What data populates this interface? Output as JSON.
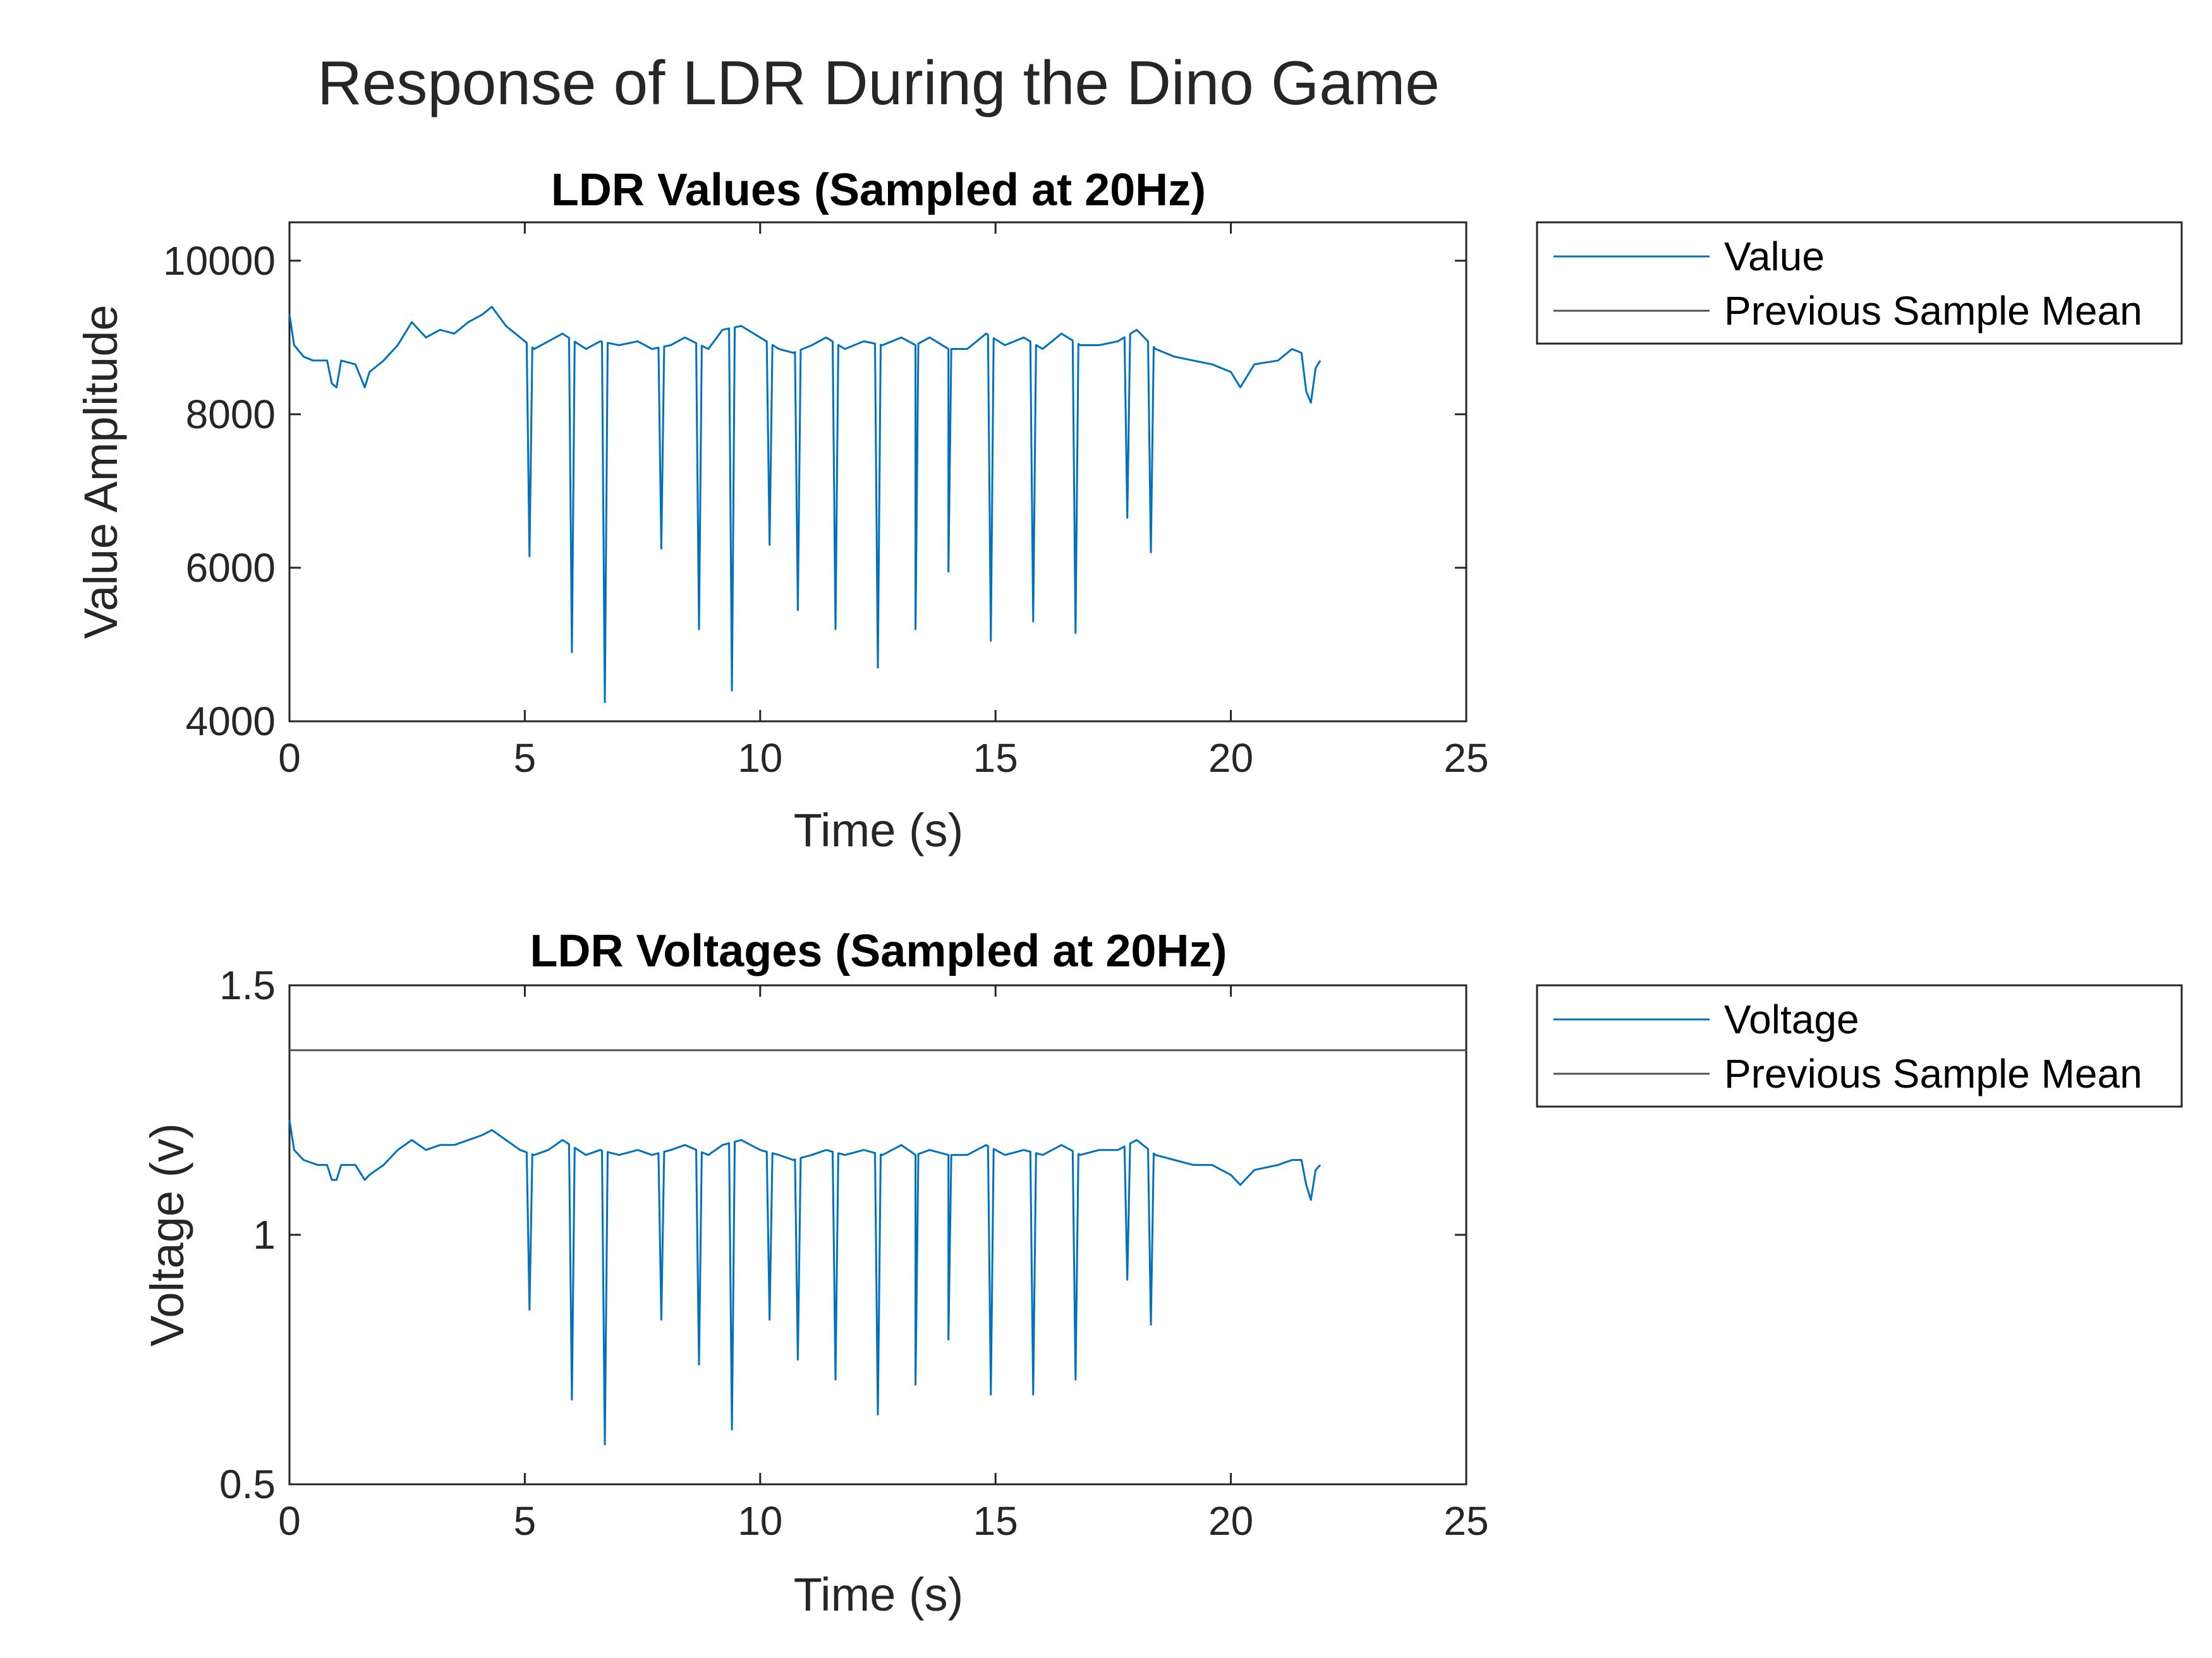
{
  "figure": {
    "title": "Response of LDR During the Dino Game"
  },
  "chart_data": [
    {
      "type": "line",
      "title": "LDR Values (Sampled at 20Hz)",
      "xlabel": "Time (s)",
      "ylabel": "Value Amplitude",
      "xlim": [
        0,
        25
      ],
      "ylim": [
        4000,
        10500
      ],
      "xticks": [
        "0",
        "5",
        "10",
        "15",
        "20",
        "25"
      ],
      "xtick_values": [
        0,
        5,
        10,
        15,
        20,
        25
      ],
      "yticks": [
        "4000",
        "6000",
        "8000",
        "10000"
      ],
      "ytick_values": [
        4000,
        6000,
        8000,
        10000
      ],
      "grid": false,
      "legend": {
        "placement": "outside-right",
        "entries": [
          "Value",
          "Previous Sample Mean"
        ]
      },
      "series": [
        {
          "name": "Value",
          "color": "#0072BD",
          "baseline": [
            [
              0.0,
              9300
            ],
            [
              0.1,
              8900
            ],
            [
              0.3,
              8750
            ],
            [
              0.5,
              8700
            ],
            [
              0.8,
              8700
            ],
            [
              0.9,
              8400
            ],
            [
              1.0,
              8350
            ],
            [
              1.1,
              8700
            ],
            [
              1.4,
              8650
            ],
            [
              1.6,
              8350
            ],
            [
              1.7,
              8550
            ],
            [
              2.0,
              8700
            ],
            [
              2.3,
              8900
            ],
            [
              2.6,
              9200
            ],
            [
              2.9,
              9000
            ],
            [
              3.2,
              9100
            ],
            [
              3.5,
              9050
            ],
            [
              3.8,
              9200
            ],
            [
              4.1,
              9300
            ],
            [
              4.3,
              9400
            ],
            [
              4.6,
              9150
            ],
            [
              4.9,
              9000
            ],
            [
              5.2,
              8850
            ],
            [
              5.5,
              8950
            ],
            [
              5.8,
              9050
            ],
            [
              6.3,
              8850
            ],
            [
              6.6,
              8950
            ],
            [
              7.0,
              8900
            ],
            [
              7.4,
              8950
            ],
            [
              7.7,
              8850
            ],
            [
              8.1,
              8900
            ],
            [
              8.4,
              9000
            ],
            [
              8.9,
              8850
            ],
            [
              9.2,
              9100
            ],
            [
              9.6,
              9150
            ],
            [
              10.0,
              9000
            ],
            [
              10.4,
              8850
            ],
            [
              10.7,
              8800
            ],
            [
              11.1,
              8900
            ],
            [
              11.4,
              9000
            ],
            [
              11.8,
              8850
            ],
            [
              12.2,
              8950
            ],
            [
              12.6,
              8900
            ],
            [
              13.0,
              9000
            ],
            [
              13.3,
              8900
            ],
            [
              13.6,
              9000
            ],
            [
              14.0,
              8850
            ],
            [
              14.4,
              8850
            ],
            [
              14.8,
              9050
            ],
            [
              15.2,
              8900
            ],
            [
              15.6,
              9000
            ],
            [
              16.0,
              8850
            ],
            [
              16.4,
              9050
            ],
            [
              16.8,
              8900
            ],
            [
              17.2,
              8900
            ],
            [
              17.6,
              8950
            ],
            [
              18.0,
              9100
            ],
            [
              18.4,
              8850
            ],
            [
              18.8,
              8750
            ],
            [
              19.2,
              8700
            ],
            [
              19.6,
              8650
            ],
            [
              20.0,
              8550
            ],
            [
              20.2,
              8350
            ],
            [
              20.5,
              8650
            ],
            [
              21.0,
              8700
            ],
            [
              21.3,
              8850
            ],
            [
              21.5,
              8800
            ],
            [
              21.6,
              8300
            ],
            [
              21.7,
              8150
            ],
            [
              21.8,
              8600
            ],
            [
              21.9,
              8700
            ]
          ],
          "dips": [
            [
              5.1,
              6150
            ],
            [
              6.0,
              4900
            ],
            [
              6.7,
              4250
            ],
            [
              7.9,
              6250
            ],
            [
              8.7,
              5200
            ],
            [
              9.4,
              4400
            ],
            [
              10.2,
              6300
            ],
            [
              10.8,
              5450
            ],
            [
              11.6,
              5200
            ],
            [
              12.5,
              4700
            ],
            [
              13.3,
              5200
            ],
            [
              14.0,
              5950
            ],
            [
              14.9,
              5050
            ],
            [
              15.8,
              5300
            ],
            [
              16.7,
              5150
            ],
            [
              17.8,
              6650
            ],
            [
              18.3,
              6200
            ]
          ]
        }
      ]
    },
    {
      "type": "line",
      "title": "LDR Voltages (Sampled at 20Hz)",
      "xlabel": "Time (s)",
      "ylabel": "Voltage (v)",
      "xlim": [
        0,
        25
      ],
      "ylim": [
        0.5,
        1.5
      ],
      "xticks": [
        "0",
        "5",
        "10",
        "15",
        "20",
        "25"
      ],
      "xtick_values": [
        0,
        5,
        10,
        15,
        20,
        25
      ],
      "yticks": [
        "0.5",
        "1",
        "1.5"
      ],
      "ytick_values": [
        0.5,
        1,
        1.5
      ],
      "grid": false,
      "legend": {
        "placement": "outside-right",
        "entries": [
          "Voltage",
          "Previous Sample Mean"
        ]
      },
      "series": [
        {
          "name": "Voltage",
          "color": "#0072BD",
          "baseline": [
            [
              0.0,
              1.23
            ],
            [
              0.1,
              1.17
            ],
            [
              0.3,
              1.15
            ],
            [
              0.6,
              1.14
            ],
            [
              0.8,
              1.14
            ],
            [
              0.9,
              1.11
            ],
            [
              1.0,
              1.11
            ],
            [
              1.1,
              1.14
            ],
            [
              1.4,
              1.14
            ],
            [
              1.6,
              1.11
            ],
            [
              1.7,
              1.12
            ],
            [
              2.0,
              1.14
            ],
            [
              2.3,
              1.17
            ],
            [
              2.6,
              1.19
            ],
            [
              2.9,
              1.17
            ],
            [
              3.2,
              1.18
            ],
            [
              3.5,
              1.18
            ],
            [
              3.8,
              1.19
            ],
            [
              4.1,
              1.2
            ],
            [
              4.3,
              1.21
            ],
            [
              4.6,
              1.19
            ],
            [
              4.9,
              1.17
            ],
            [
              5.2,
              1.16
            ],
            [
              5.5,
              1.17
            ],
            [
              5.8,
              1.19
            ],
            [
              6.3,
              1.16
            ],
            [
              6.6,
              1.17
            ],
            [
              7.0,
              1.16
            ],
            [
              7.4,
              1.17
            ],
            [
              7.7,
              1.16
            ],
            [
              8.1,
              1.17
            ],
            [
              8.4,
              1.18
            ],
            [
              8.9,
              1.16
            ],
            [
              9.2,
              1.18
            ],
            [
              9.6,
              1.19
            ],
            [
              10.0,
              1.17
            ],
            [
              10.4,
              1.16
            ],
            [
              10.7,
              1.15
            ],
            [
              11.1,
              1.16
            ],
            [
              11.4,
              1.17
            ],
            [
              11.8,
              1.16
            ],
            [
              12.2,
              1.17
            ],
            [
              12.6,
              1.16
            ],
            [
              13.0,
              1.18
            ],
            [
              13.3,
              1.16
            ],
            [
              13.6,
              1.17
            ],
            [
              14.0,
              1.16
            ],
            [
              14.4,
              1.16
            ],
            [
              14.8,
              1.18
            ],
            [
              15.2,
              1.16
            ],
            [
              15.6,
              1.17
            ],
            [
              16.0,
              1.16
            ],
            [
              16.4,
              1.18
            ],
            [
              16.8,
              1.16
            ],
            [
              17.2,
              1.17
            ],
            [
              17.6,
              1.17
            ],
            [
              18.0,
              1.19
            ],
            [
              18.4,
              1.16
            ],
            [
              18.8,
              1.15
            ],
            [
              19.2,
              1.14
            ],
            [
              19.6,
              1.14
            ],
            [
              20.0,
              1.12
            ],
            [
              20.2,
              1.1
            ],
            [
              20.5,
              1.13
            ],
            [
              21.0,
              1.14
            ],
            [
              21.3,
              1.15
            ],
            [
              21.5,
              1.15
            ],
            [
              21.6,
              1.1
            ],
            [
              21.7,
              1.07
            ],
            [
              21.8,
              1.13
            ],
            [
              21.9,
              1.14
            ]
          ],
          "dips": [
            [
              5.1,
              0.85
            ],
            [
              6.0,
              0.67
            ],
            [
              6.7,
              0.58
            ],
            [
              7.9,
              0.83
            ],
            [
              8.7,
              0.74
            ],
            [
              9.4,
              0.61
            ],
            [
              10.2,
              0.83
            ],
            [
              10.8,
              0.75
            ],
            [
              11.6,
              0.71
            ],
            [
              12.5,
              0.64
            ],
            [
              13.3,
              0.7
            ],
            [
              14.0,
              0.79
            ],
            [
              14.9,
              0.68
            ],
            [
              15.8,
              0.68
            ],
            [
              16.7,
              0.71
            ],
            [
              17.8,
              0.91
            ],
            [
              18.3,
              0.82
            ]
          ]
        },
        {
          "name": "Previous Sample Mean",
          "color": "#555555",
          "x": [
            0,
            25
          ],
          "values": [
            1.37,
            1.37
          ]
        }
      ]
    }
  ]
}
